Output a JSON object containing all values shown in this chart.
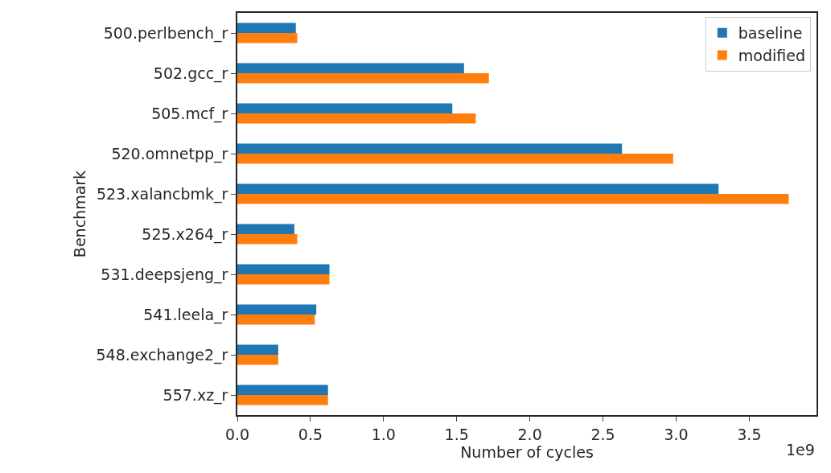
{
  "chart_data": {
    "type": "bar",
    "orientation": "horizontal",
    "categories": [
      "500.perlbench_r",
      "502.gcc_r",
      "505.mcf_r",
      "520.omnetpp_r",
      "523.xalancbmk_r",
      "525.x264_r",
      "531.deepsjeng_r",
      "541.leela_r",
      "548.exchange2_r",
      "557.xz_r"
    ],
    "series": [
      {
        "name": "baseline",
        "color": "#1f77b4",
        "values": [
          0.4,
          1.55,
          1.47,
          2.63,
          3.29,
          0.39,
          0.63,
          0.54,
          0.28,
          0.62
        ]
      },
      {
        "name": "modified",
        "color": "#ff7f0e",
        "values": [
          0.41,
          1.72,
          1.63,
          2.98,
          3.77,
          0.41,
          0.63,
          0.53,
          0.28,
          0.62
        ]
      }
    ],
    "xlabel": "Number of cycles",
    "ylabel": "Benchmark",
    "xlim": [
      0,
      3.96
    ],
    "xticks": [
      {
        "value": 0,
        "label": "0.0"
      },
      {
        "value": 0.5,
        "label": "0.5"
      },
      {
        "value": 1,
        "label": "1.0"
      },
      {
        "value": 1.5,
        "label": "1.5"
      },
      {
        "value": 2,
        "label": "2.0"
      },
      {
        "value": 2.5,
        "label": "2.5"
      },
      {
        "value": 3,
        "label": "3.0"
      },
      {
        "value": 3.5,
        "label": "3.5"
      }
    ],
    "annotations": [
      "1e9"
    ],
    "legend": "top right",
    "grid": false
  }
}
